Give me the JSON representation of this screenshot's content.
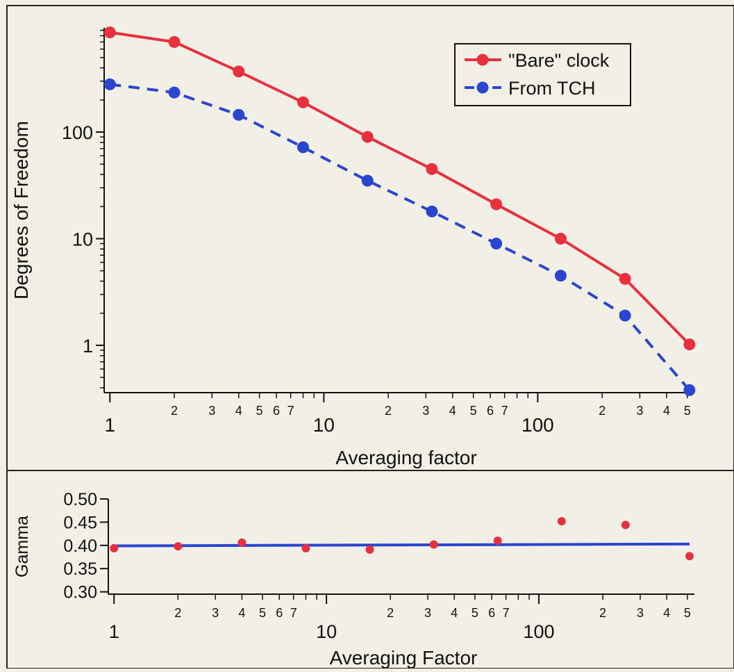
{
  "chart_data": [
    {
      "type": "line",
      "xscale": "log",
      "yscale": "log",
      "xlabel": "Averaging factor",
      "ylabel": "Degrees of Freedom",
      "xlim": [
        0.94,
        540
      ],
      "ylim": [
        0.36,
        950
      ],
      "x_ticks": [
        {
          "value": 1,
          "label": "1",
          "major": true
        },
        {
          "value": 2,
          "label": "2"
        },
        {
          "value": 3,
          "label": "3"
        },
        {
          "value": 4,
          "label": "4"
        },
        {
          "value": 5,
          "label": "5"
        },
        {
          "value": 6,
          "label": "6"
        },
        {
          "value": 7,
          "label": "7"
        },
        {
          "value": 8,
          "label": ""
        },
        {
          "value": 9,
          "label": ""
        },
        {
          "value": 10,
          "label": "10",
          "major": true
        },
        {
          "value": 20,
          "label": "2"
        },
        {
          "value": 30,
          "label": "3"
        },
        {
          "value": 40,
          "label": "4"
        },
        {
          "value": 50,
          "label": "5"
        },
        {
          "value": 60,
          "label": "6"
        },
        {
          "value": 70,
          "label": "7"
        },
        {
          "value": 80,
          "label": ""
        },
        {
          "value": 90,
          "label": ""
        },
        {
          "value": 100,
          "label": "100",
          "major": true
        },
        {
          "value": 200,
          "label": "2"
        },
        {
          "value": 300,
          "label": "3"
        },
        {
          "value": 400,
          "label": "4"
        },
        {
          "value": 500,
          "label": "5"
        }
      ],
      "y_ticks": [
        {
          "value": 1,
          "label": "1"
        },
        {
          "value": 10,
          "label": "10"
        },
        {
          "value": 100,
          "label": "100"
        }
      ],
      "legend_position": "top-right",
      "series": [
        {
          "name": "\"Bare\" clock",
          "color": "#e8303e",
          "style": "solid",
          "x": [
            1,
            2,
            4,
            8,
            16,
            32,
            64,
            128,
            256,
            512
          ],
          "y": [
            860,
            700,
            370,
            190,
            90,
            45,
            21,
            10,
            4.2,
            1.02
          ]
        },
        {
          "name": "From TCH",
          "color": "#2a45d0",
          "style": "dashed",
          "x": [
            1,
            2,
            4,
            8,
            16,
            32,
            64,
            128,
            256,
            512
          ],
          "y": [
            280,
            235,
            145,
            72,
            35,
            18,
            9,
            4.5,
            1.9,
            0.38
          ]
        }
      ]
    },
    {
      "type": "scatter",
      "xscale": "log",
      "xlabel": "Averaging Factor",
      "ylabel": "Gamma",
      "xlim": [
        0.94,
        540
      ],
      "ylim": [
        0.295,
        0.5
      ],
      "x_ticks": [
        {
          "value": 1,
          "label": "1",
          "major": true
        },
        {
          "value": 2,
          "label": "2"
        },
        {
          "value": 3,
          "label": "3"
        },
        {
          "value": 4,
          "label": "4"
        },
        {
          "value": 5,
          "label": "5"
        },
        {
          "value": 6,
          "label": "6"
        },
        {
          "value": 7,
          "label": "7"
        },
        {
          "value": 8,
          "label": ""
        },
        {
          "value": 9,
          "label": ""
        },
        {
          "value": 10,
          "label": "10",
          "major": true
        },
        {
          "value": 20,
          "label": "2"
        },
        {
          "value": 30,
          "label": "3"
        },
        {
          "value": 40,
          "label": "4"
        },
        {
          "value": 50,
          "label": "5"
        },
        {
          "value": 60,
          "label": "6"
        },
        {
          "value": 70,
          "label": "7"
        },
        {
          "value": 80,
          "label": ""
        },
        {
          "value": 90,
          "label": ""
        },
        {
          "value": 100,
          "label": "100",
          "major": true
        },
        {
          "value": 200,
          "label": "2"
        },
        {
          "value": 300,
          "label": "3"
        },
        {
          "value": 400,
          "label": "4"
        },
        {
          "value": 500,
          "label": "5"
        }
      ],
      "y_ticks": [
        {
          "value": 0.3,
          "label": "0.30"
        },
        {
          "value": 0.35,
          "label": "0.35"
        },
        {
          "value": 0.4,
          "label": "0.40"
        },
        {
          "value": 0.45,
          "label": "0.45"
        },
        {
          "value": 0.5,
          "label": "0.50"
        }
      ],
      "points": {
        "color": "#e8303e",
        "x": [
          1,
          2,
          4,
          8,
          16,
          32,
          64,
          128,
          256,
          512
        ],
        "y": [
          0.394,
          0.398,
          0.406,
          0.394,
          0.391,
          0.402,
          0.41,
          0.452,
          0.444,
          0.377
        ]
      },
      "fit_line": {
        "color": "#2a45d0",
        "x": [
          1,
          512
        ],
        "y": [
          0.399,
          0.403
        ]
      }
    }
  ]
}
